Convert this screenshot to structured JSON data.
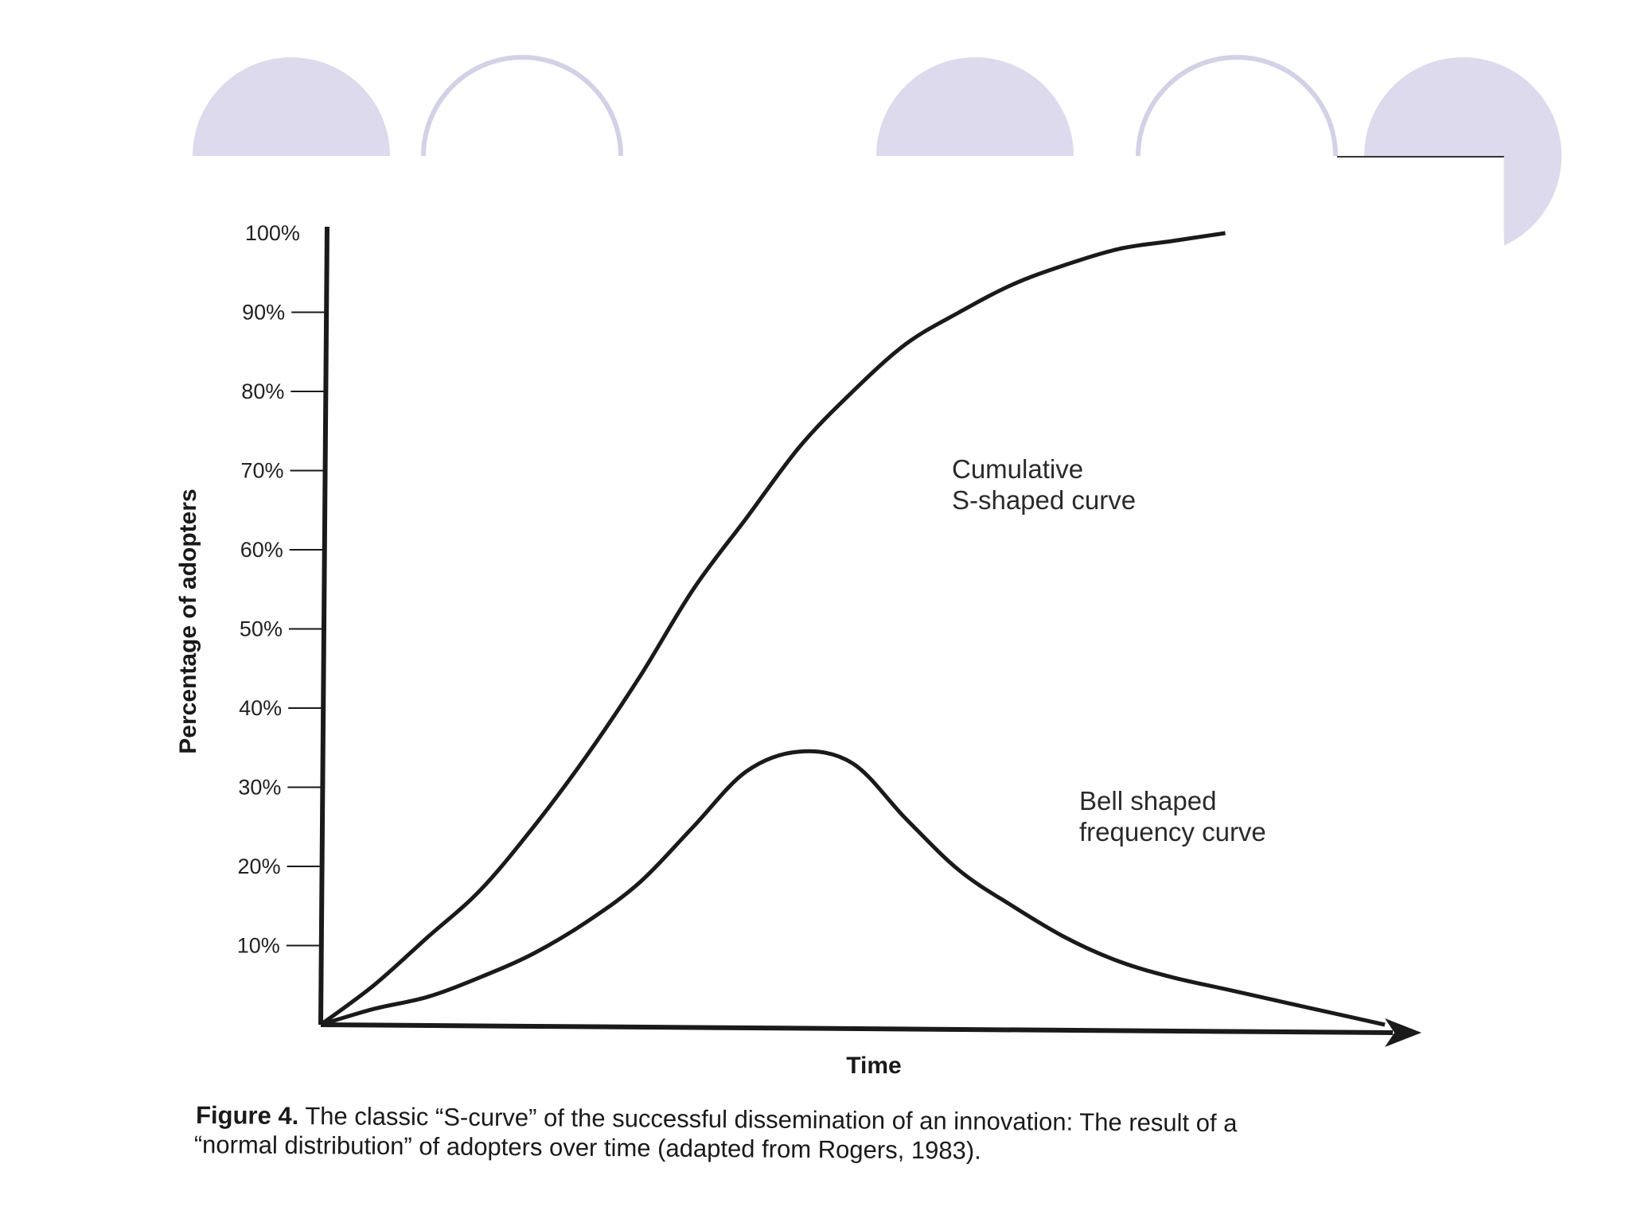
{
  "theme": {
    "decor_fill": "#dcdaec",
    "decor_stroke": "#d3d1e6",
    "ink": "#1a1a1a"
  },
  "chart_data": {
    "type": "line",
    "xlabel": "Time",
    "ylabel": "Percentage of adopters",
    "ylim": [
      0,
      100
    ],
    "y_ticks": [
      "10%",
      "20%",
      "30%",
      "40%",
      "50%",
      "60%",
      "70%",
      "80%",
      "90%",
      "100%"
    ],
    "grid": false,
    "x": [
      0,
      5,
      10,
      15,
      20,
      25,
      30,
      35,
      40,
      45,
      50,
      55,
      60,
      65,
      70,
      75,
      80,
      85,
      90,
      95,
      100
    ],
    "series": [
      {
        "name": "Cumulative S-shaped curve",
        "name_lines": [
          "Cumulative",
          "S-shaped curve"
        ],
        "values": [
          0,
          5,
          11,
          17,
          25,
          34,
          44,
          55,
          64,
          73,
          80,
          86,
          90,
          93.5,
          96,
          98,
          99,
          100,
          100,
          100,
          100
        ]
      },
      {
        "name": "Bell shaped frequency curve",
        "name_lines": [
          "Bell shaped",
          "frequency curve"
        ],
        "values": [
          0,
          2,
          3.5,
          6,
          9,
          13,
          18,
          25,
          32,
          34.5,
          33,
          26,
          19.5,
          15,
          11,
          8,
          6,
          4.5,
          3,
          1.5,
          0
        ]
      }
    ]
  },
  "caption": {
    "label": "Figure 4.",
    "line1": " The classic “S-curve” of the successful dissemination of an innovation: The result of a",
    "line2": "“normal distribution” of adopters over time (adapted from Rogers, 1983)."
  }
}
